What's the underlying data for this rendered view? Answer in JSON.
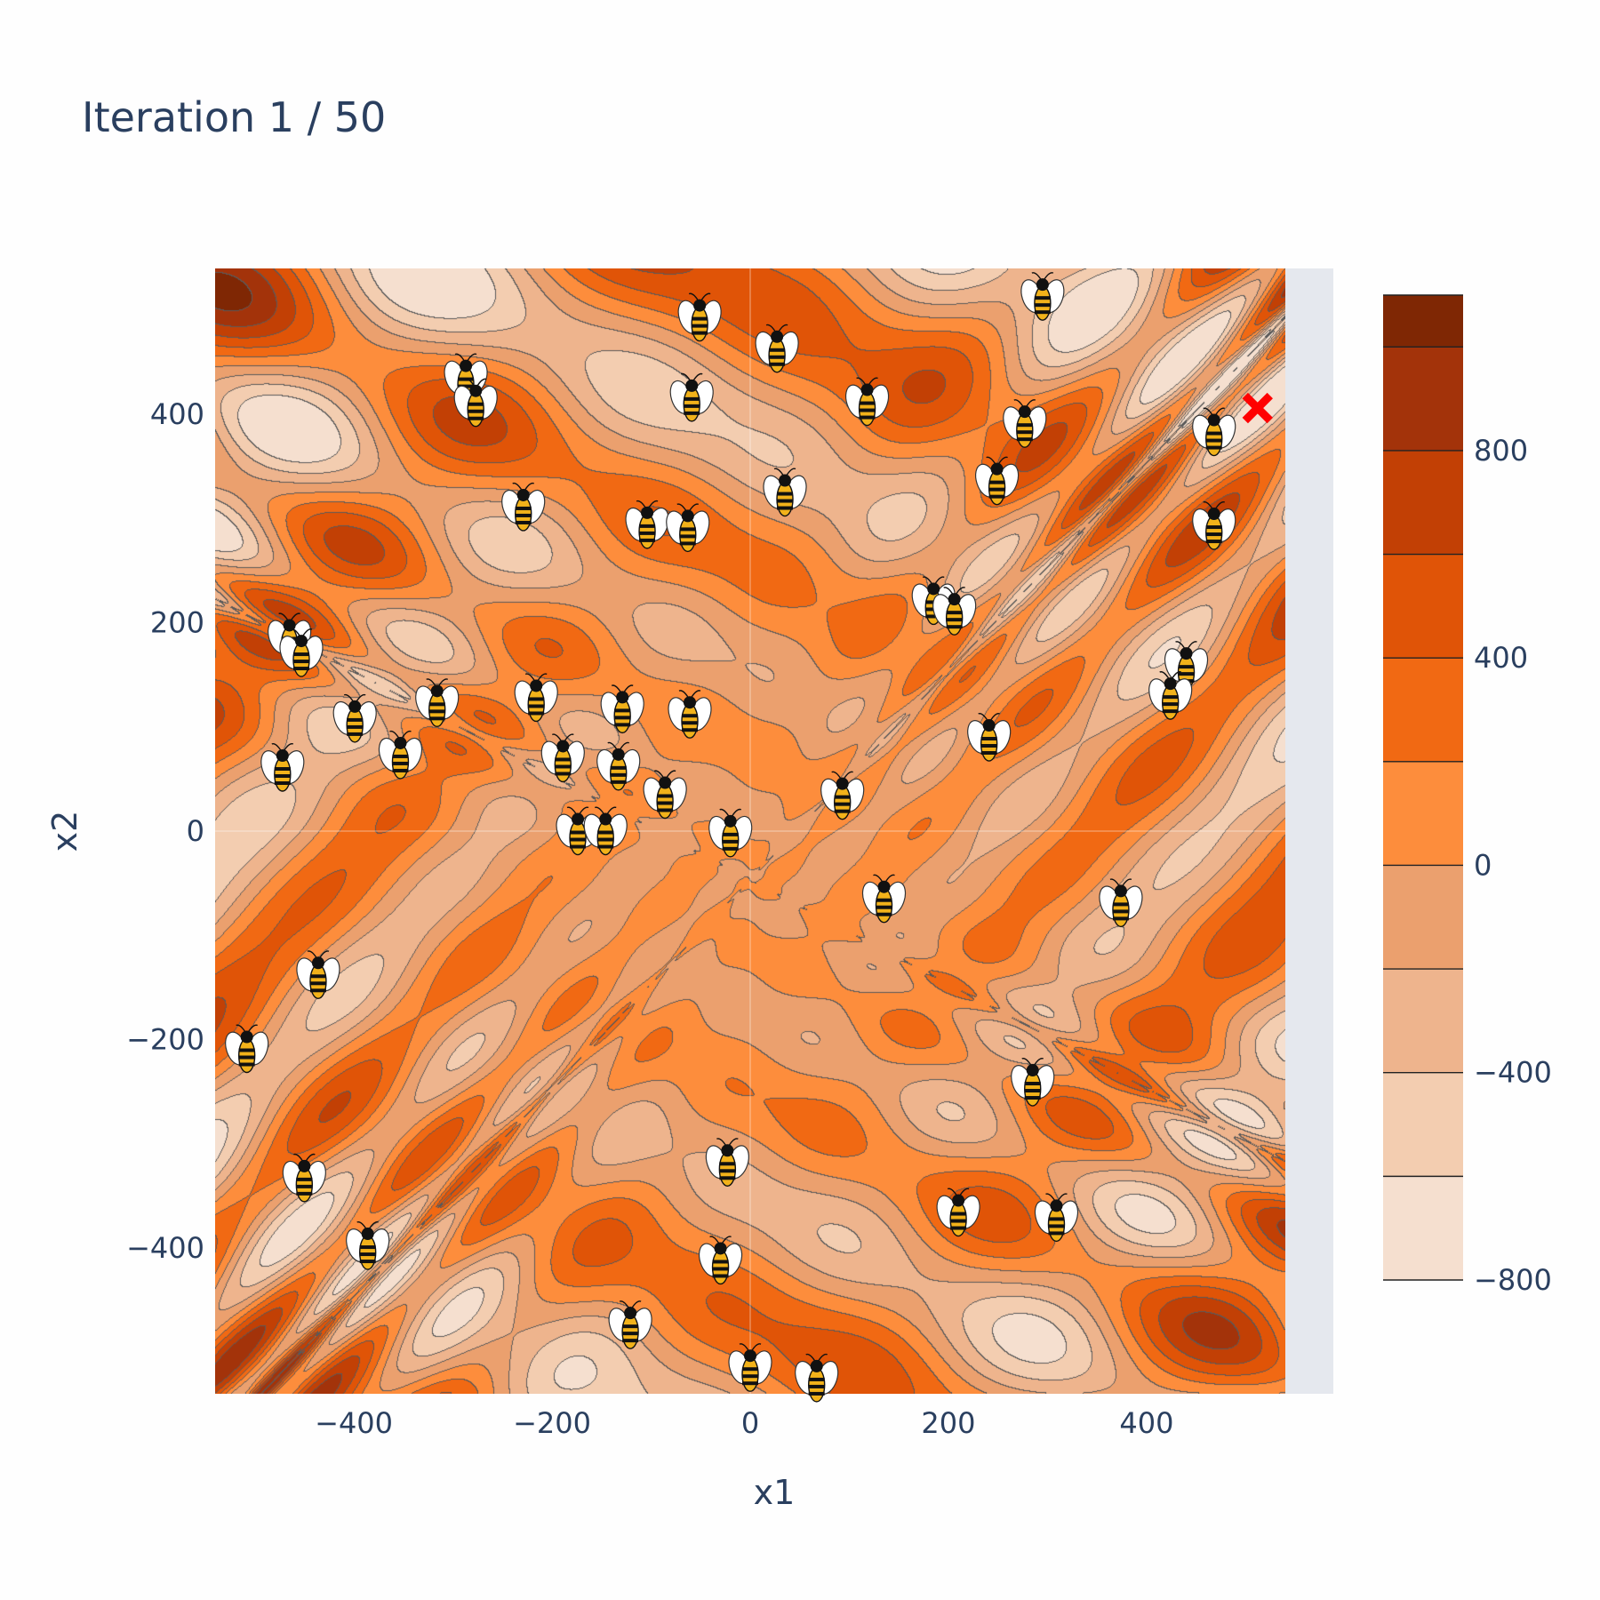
{
  "chart_data": {
    "type": "contour",
    "title": "Iteration 1 / 50",
    "xlabel": "x1",
    "ylabel": "x2",
    "xlim": [
      -540,
      540
    ],
    "ylim": [
      -540,
      540
    ],
    "x_ticks": [
      -400,
      -200,
      0,
      200,
      400
    ],
    "y_ticks": [
      -400,
      -200,
      0,
      200,
      400
    ],
    "x_tick_labels": [
      "−400",
      "−200",
      "0",
      "200",
      "400"
    ],
    "y_tick_labels": [
      "−400",
      "−200",
      "0",
      "200",
      "400"
    ],
    "colorbar": {
      "range": [
        -800,
        1100
      ],
      "ticks": [
        -800,
        -400,
        0,
        400,
        800
      ],
      "tick_labels": [
        "−800",
        "−400",
        "0",
        "400",
        "800"
      ],
      "levels": [
        -800,
        -600,
        -400,
        -200,
        0,
        200,
        400,
        600,
        800,
        1000,
        1100
      ],
      "colors": [
        "#f5dfcf",
        "#f3cdb0",
        "#eeb48d",
        "#eba06e",
        "#fd8d3c",
        "#f16913",
        "#e05407",
        "#c24005",
        "#a3330a",
        "#7f2704"
      ]
    },
    "bees": [
      [
        -51,
        490
      ],
      [
        27,
        460
      ],
      [
        -59,
        413
      ],
      [
        118,
        409
      ],
      [
        295,
        510
      ],
      [
        -287,
        432
      ],
      [
        -277,
        408
      ],
      [
        277,
        388
      ],
      [
        468,
        380
      ],
      [
        249,
        333
      ],
      [
        35,
        322
      ],
      [
        -229,
        308
      ],
      [
        -104,
        291
      ],
      [
        -63,
        288
      ],
      [
        468,
        290
      ],
      [
        185,
        218
      ],
      [
        206,
        208
      ],
      [
        -465,
        183
      ],
      [
        -453,
        168
      ],
      [
        440,
        156
      ],
      [
        424,
        127
      ],
      [
        -216,
        125
      ],
      [
        -129,
        114
      ],
      [
        -316,
        120
      ],
      [
        -61,
        109
      ],
      [
        -399,
        105
      ],
      [
        241,
        87
      ],
      [
        -353,
        70
      ],
      [
        -189,
        67
      ],
      [
        -133,
        59
      ],
      [
        -472,
        58
      ],
      [
        -86,
        32
      ],
      [
        93,
        31
      ],
      [
        -174,
        -3
      ],
      [
        -146,
        -3
      ],
      [
        -20,
        -5
      ],
      [
        135,
        -68
      ],
      [
        374,
        -72
      ],
      [
        -436,
        -141
      ],
      [
        -508,
        -212
      ],
      [
        285,
        -244
      ],
      [
        -23,
        -321
      ],
      [
        -450,
        -336
      ],
      [
        210,
        -369
      ],
      [
        309,
        -374
      ],
      [
        -386,
        -401
      ],
      [
        -30,
        -415
      ],
      [
        -121,
        -477
      ],
      [
        0,
        -518
      ],
      [
        67,
        -528
      ]
    ],
    "best_marker": {
      "x": 512,
      "y": 406,
      "color": "#ff0000",
      "symbol": "x"
    },
    "surface": "eggholder"
  }
}
